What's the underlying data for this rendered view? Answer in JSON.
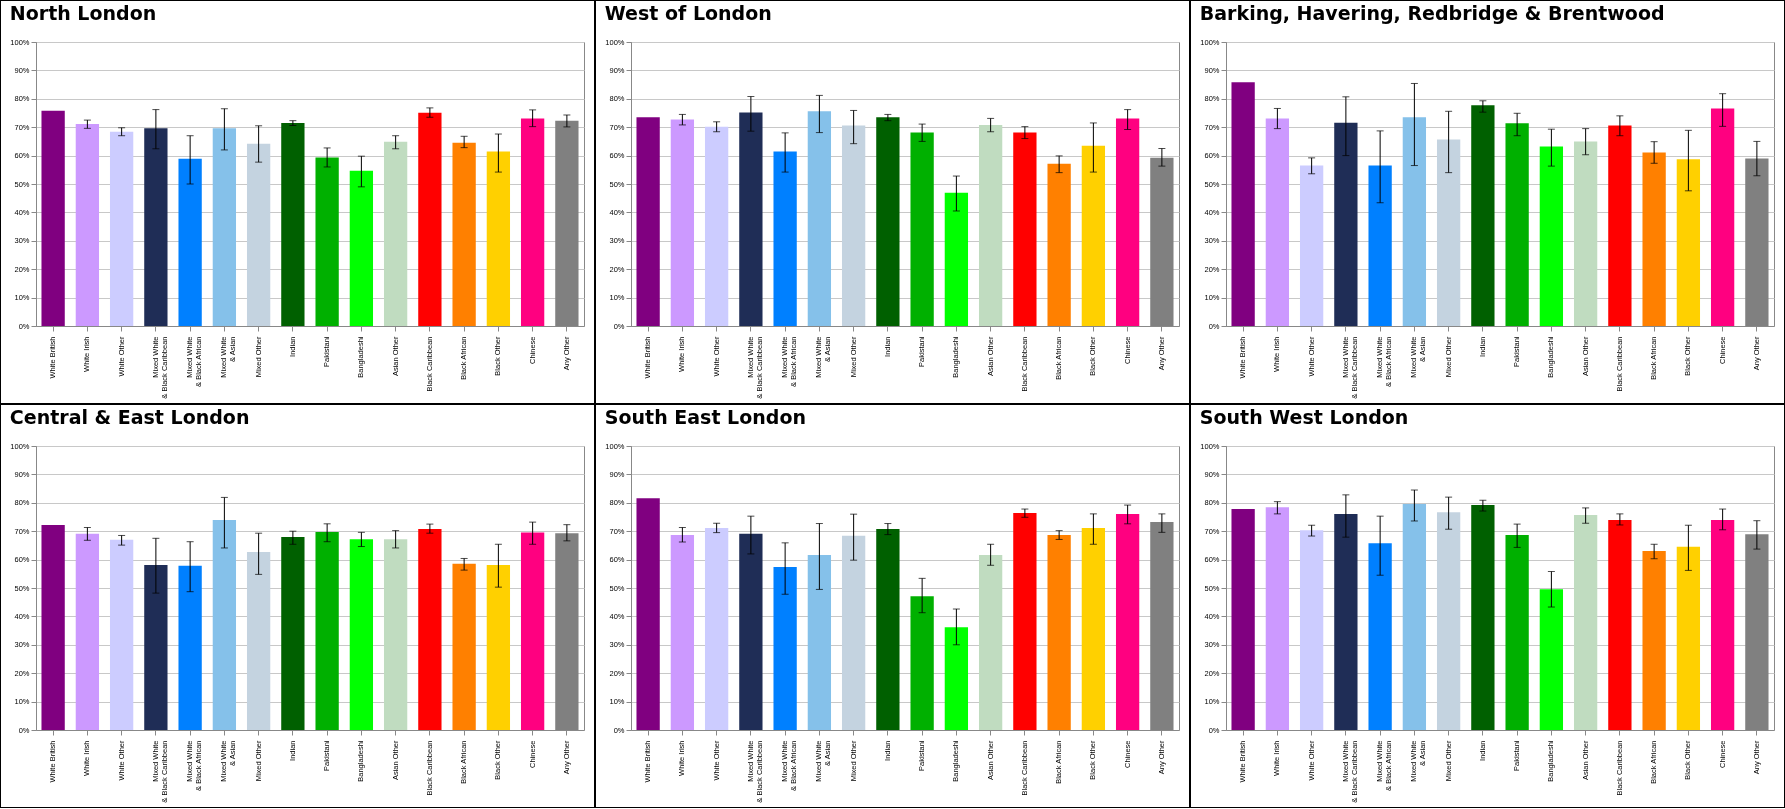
{
  "chart_data": [
    {
      "type": "bar",
      "title": "North London",
      "categories": [
        "White British",
        "White Irish",
        "White Other",
        "Mixed White\n& Black Caribbean",
        "Mixed White\n& Black African",
        "Mixed White\n& Asian",
        "Mixed Other",
        "Indian",
        "Pakistani",
        "Bangladeshi",
        "Asian Other",
        "Black Caribbean",
        "Black African",
        "Black Other",
        "Chinese",
        "Any Other"
      ],
      "values": [
        75.8,
        71.1,
        68.4,
        69.6,
        58.9,
        69.6,
        64.2,
        71.5,
        59.3,
        54.7,
        64.9,
        75.1,
        64.5,
        61.4,
        73.1,
        72.3
      ],
      "errors": [
        null,
        [
          69.6,
          72.5
        ],
        [
          67.0,
          69.8
        ],
        [
          62.4,
          76.2
        ],
        [
          50.0,
          67.0
        ],
        [
          62.0,
          76.5
        ],
        [
          57.7,
          70.5
        ],
        [
          70.6,
          72.3
        ],
        [
          56.0,
          62.7
        ],
        [
          49.0,
          59.8
        ],
        [
          62.4,
          67.0
        ],
        [
          73.5,
          76.8
        ],
        [
          62.8,
          66.8
        ],
        [
          54.2,
          67.6
        ],
        [
          70.2,
          76.1
        ],
        [
          70.1,
          74.3
        ]
      ],
      "colors": [
        "#800080",
        "#cc99ff",
        "#ccccff",
        "#1f2d56",
        "#0080ff",
        "#85c1ea",
        "#c4d3e0",
        "#006000",
        "#00b000",
        "#00ff00",
        "#c0dcc0",
        "#ff0000",
        "#ff8000",
        "#ffd000",
        "#ff0080",
        "#808080"
      ],
      "ylim": [
        0,
        100
      ],
      "yticks": [
        {
          "value": 0,
          "label": "0%"
        },
        {
          "value": 10,
          "label": "10%"
        },
        {
          "value": 20,
          "label": "20%"
        },
        {
          "value": 30,
          "label": "30%"
        },
        {
          "value": 40,
          "label": "40%"
        },
        {
          "value": 50,
          "label": "50%"
        },
        {
          "value": 60,
          "label": "60%"
        },
        {
          "value": 70,
          "label": "70%"
        },
        {
          "value": 80,
          "label": "80%"
        },
        {
          "value": 90,
          "label": "90%"
        },
        {
          "value": 100,
          "label": "100%"
        }
      ],
      "grid": "y"
    },
    {
      "type": "bar",
      "title": "West of London",
      "categories": [
        "White British",
        "White Irish",
        "White Other",
        "Mixed White\n& Black Caribbean",
        "Mixed White\n& Black African",
        "Mixed White\n& Asian",
        "Mixed Other",
        "Indian",
        "Pakistani",
        "Bangladeshi",
        "Asian Other",
        "Black Caribbean",
        "Black African",
        "Black Other",
        "Chinese",
        "Any Other"
      ],
      "values": [
        73.5,
        72.7,
        70.2,
        75.2,
        61.4,
        75.6,
        70.6,
        73.5,
        68.1,
        46.9,
        70.8,
        68.1,
        57.1,
        63.5,
        73.1,
        59.2
      ],
      "errors": [
        null,
        [
          70.8,
          74.5
        ],
        [
          68.4,
          71.9
        ],
        [
          68.6,
          80.8
        ],
        [
          54.2,
          68.0
        ],
        [
          68.1,
          81.2
        ],
        [
          64.2,
          75.9
        ],
        [
          72.3,
          74.5
        ],
        [
          65.0,
          71.1
        ],
        [
          40.5,
          52.8
        ],
        [
          68.4,
          73.1
        ],
        [
          66.0,
          70.2
        ],
        [
          54.0,
          59.9
        ],
        [
          54.2,
          71.5
        ],
        [
          69.2,
          76.2
        ],
        [
          56.3,
          62.5
        ]
      ],
      "colors": [
        "#800080",
        "#cc99ff",
        "#ccccff",
        "#1f2d56",
        "#0080ff",
        "#85c1ea",
        "#c4d3e0",
        "#006000",
        "#00b000",
        "#00ff00",
        "#c0dcc0",
        "#ff0000",
        "#ff8000",
        "#ffd000",
        "#ff0080",
        "#808080"
      ],
      "ylim": [
        0,
        100
      ],
      "yticks": [
        {
          "value": 0,
          "label": "0%"
        },
        {
          "value": 10,
          "label": "10%"
        },
        {
          "value": 20,
          "label": "20%"
        },
        {
          "value": 30,
          "label": "30%"
        },
        {
          "value": 40,
          "label": "40%"
        },
        {
          "value": 50,
          "label": "50%"
        },
        {
          "value": 60,
          "label": "60%"
        },
        {
          "value": 70,
          "label": "70%"
        },
        {
          "value": 80,
          "label": "80%"
        },
        {
          "value": 90,
          "label": "90%"
        },
        {
          "value": 100,
          "label": "100%"
        }
      ],
      "grid": "y"
    },
    {
      "type": "bar",
      "title": "Barking, Havering, Redbridge & Brentwood",
      "categories": [
        "White British",
        "White Irish",
        "White Other",
        "Mixed White\n& Black Caribbean",
        "Mixed White\n& Black African",
        "Mixed White\n& Asian",
        "Mixed Other",
        "Indian",
        "Pakistani",
        "Bangladeshi",
        "Asian Other",
        "Black Caribbean",
        "Black African",
        "Black Other",
        "Chinese",
        "Any Other"
      ],
      "values": [
        85.8,
        73.1,
        56.5,
        71.6,
        56.5,
        73.5,
        65.7,
        77.7,
        71.4,
        63.2,
        65.0,
        70.6,
        61.1,
        58.7,
        76.6,
        59.0
      ],
      "errors": [
        null,
        [
          69.5,
          76.6
        ],
        [
          53.6,
          59.2
        ],
        [
          60.0,
          80.7
        ],
        [
          43.4,
          68.7
        ],
        [
          56.5,
          85.4
        ],
        [
          54.0,
          75.6
        ],
        [
          75.3,
          79.3
        ],
        [
          67.0,
          74.9
        ],
        [
          56.3,
          69.3
        ],
        [
          60.3,
          69.5
        ],
        [
          67.0,
          74.0
        ],
        [
          57.3,
          64.9
        ],
        [
          47.6,
          68.9
        ],
        [
          70.3,
          81.8
        ],
        [
          52.9,
          65.0
        ]
      ],
      "colors": [
        "#800080",
        "#cc99ff",
        "#ccccff",
        "#1f2d56",
        "#0080ff",
        "#85c1ea",
        "#c4d3e0",
        "#006000",
        "#00b000",
        "#00ff00",
        "#c0dcc0",
        "#ff0000",
        "#ff8000",
        "#ffd000",
        "#ff0080",
        "#808080"
      ],
      "ylim": [
        0,
        100
      ],
      "yticks": [
        {
          "value": 0,
          "label": "0%"
        },
        {
          "value": 10,
          "label": "10%"
        },
        {
          "value": 20,
          "label": "20%"
        },
        {
          "value": 30,
          "label": "30%"
        },
        {
          "value": 40,
          "label": "40%"
        },
        {
          "value": 50,
          "label": "50%"
        },
        {
          "value": 60,
          "label": "60%"
        },
        {
          "value": 70,
          "label": "70%"
        },
        {
          "value": 80,
          "label": "80%"
        },
        {
          "value": 90,
          "label": "90%"
        },
        {
          "value": 100,
          "label": "100%"
        }
      ],
      "grid": "y"
    },
    {
      "type": "bar",
      "title": "Central & East London",
      "categories": [
        "White British",
        "White Irish",
        "White Other",
        "Mixed White\n& Black Caribbean",
        "Mixed White\n& Black African",
        "Mixed White\n& Asian",
        "Mixed Other",
        "Indian",
        "Pakistani",
        "Bangladeshi",
        "Asian Other",
        "Black Caribbean",
        "Black African",
        "Black Other",
        "Chinese",
        "Any Other"
      ],
      "values": [
        72.2,
        69.1,
        67.0,
        58.1,
        57.8,
        73.9,
        62.7,
        68.0,
        69.7,
        67.2,
        67.2,
        70.8,
        58.5,
        58.1,
        69.5,
        69.3
      ],
      "errors": [
        null,
        [
          66.8,
          71.3
        ],
        [
          65.1,
          68.5
        ],
        [
          48.2,
          67.5
        ],
        [
          48.7,
          66.3
        ],
        [
          64.1,
          81.9
        ],
        [
          54.8,
          69.3
        ],
        [
          65.4,
          70.0
        ],
        [
          66.3,
          72.6
        ],
        [
          64.6,
          69.6
        ],
        [
          64.1,
          70.2
        ],
        [
          69.3,
          72.5
        ],
        [
          56.3,
          60.4
        ],
        [
          50.3,
          65.4
        ],
        [
          65.4,
          73.2
        ],
        [
          66.6,
          72.3
        ]
      ],
      "colors": [
        "#800080",
        "#cc99ff",
        "#ccccff",
        "#1f2d56",
        "#0080ff",
        "#85c1ea",
        "#c4d3e0",
        "#006000",
        "#00b000",
        "#00ff00",
        "#c0dcc0",
        "#ff0000",
        "#ff8000",
        "#ffd000",
        "#ff0080",
        "#808080"
      ],
      "ylim": [
        0,
        100
      ],
      "yticks": [
        {
          "value": 0,
          "label": "0%"
        },
        {
          "value": 10,
          "label": "10%"
        },
        {
          "value": 20,
          "label": "20%"
        },
        {
          "value": 30,
          "label": "30%"
        },
        {
          "value": 40,
          "label": "40%"
        },
        {
          "value": 50,
          "label": "50%"
        },
        {
          "value": 60,
          "label": "60%"
        },
        {
          "value": 70,
          "label": "70%"
        },
        {
          "value": 80,
          "label": "80%"
        },
        {
          "value": 90,
          "label": "90%"
        },
        {
          "value": 100,
          "label": "100%"
        }
      ],
      "grid": "y"
    },
    {
      "type": "bar",
      "title": "South East London",
      "categories": [
        "White British",
        "White Irish",
        "White Other",
        "Mixed White\n& Black Caribbean",
        "Mixed White\n& Black African",
        "Mixed White\n& Asian",
        "Mixed Other",
        "Indian",
        "Pakistani",
        "Bangladeshi",
        "Asian Other",
        "Black Caribbean",
        "Black African",
        "Black Other",
        "Chinese",
        "Any Other"
      ],
      "values": [
        81.6,
        68.7,
        71.1,
        69.1,
        57.4,
        61.6,
        68.4,
        70.8,
        47.1,
        36.2,
        61.6,
        76.4,
        68.7,
        71.1,
        76.1,
        73.2
      ],
      "errors": [
        null,
        [
          66.2,
          71.3
        ],
        [
          69.5,
          72.8
        ],
        [
          62.0,
          75.3
        ],
        [
          47.8,
          65.9
        ],
        [
          49.5,
          72.7
        ],
        [
          59.8,
          76.0
        ],
        [
          68.8,
          72.7
        ],
        [
          41.3,
          53.4
        ],
        [
          30.0,
          42.6
        ],
        [
          58.0,
          65.4
        ],
        [
          74.9,
          77.8
        ],
        [
          67.1,
          70.2
        ],
        [
          65.4,
          76.1
        ],
        [
          72.6,
          79.2
        ],
        [
          69.6,
          76.1
        ]
      ],
      "colors": [
        "#800080",
        "#cc99ff",
        "#ccccff",
        "#1f2d56",
        "#0080ff",
        "#85c1ea",
        "#c4d3e0",
        "#006000",
        "#00b000",
        "#00ff00",
        "#c0dcc0",
        "#ff0000",
        "#ff8000",
        "#ffd000",
        "#ff0080",
        "#808080"
      ],
      "ylim": [
        0,
        100
      ],
      "yticks": [
        {
          "value": 0,
          "label": "0%"
        },
        {
          "value": 10,
          "label": "10%"
        },
        {
          "value": 20,
          "label": "20%"
        },
        {
          "value": 30,
          "label": "30%"
        },
        {
          "value": 40,
          "label": "40%"
        },
        {
          "value": 50,
          "label": "50%"
        },
        {
          "value": 60,
          "label": "60%"
        },
        {
          "value": 70,
          "label": "70%"
        },
        {
          "value": 80,
          "label": "80%"
        },
        {
          "value": 90,
          "label": "90%"
        },
        {
          "value": 100,
          "label": "100%"
        }
      ],
      "grid": "y"
    },
    {
      "type": "bar",
      "title": "South West London",
      "categories": [
        "White British",
        "White Irish",
        "White Other",
        "Mixed White\n& Black Caribbean",
        "Mixed White\n& Black African",
        "Mixed White\n& Asian",
        "Mixed Other",
        "Indian",
        "Pakistani",
        "Bangladeshi",
        "Asian Other",
        "Black Caribbean",
        "Black African",
        "Black Other",
        "Chinese",
        "Any Other"
      ],
      "values": [
        77.8,
        78.4,
        70.3,
        76.1,
        65.8,
        79.6,
        76.7,
        79.2,
        68.7,
        49.6,
        75.7,
        73.9,
        63.0,
        64.5,
        73.9,
        68.9
      ],
      "errors": [
        null,
        [
          76.1,
          80.4
        ],
        [
          68.3,
          72.1
        ],
        [
          67.9,
          82.8
        ],
        [
          54.5,
          75.3
        ],
        [
          73.6,
          84.5
        ],
        [
          70.7,
          82.0
        ],
        [
          77.1,
          80.9
        ],
        [
          64.3,
          72.5
        ],
        [
          43.3,
          55.8
        ],
        [
          72.8,
          78.2
        ],
        [
          72.2,
          76.1
        ],
        [
          60.3,
          65.4
        ],
        [
          56.2,
          72.1
        ],
        [
          70.5,
          77.8
        ],
        [
          63.7,
          73.7
        ]
      ],
      "colors": [
        "#800080",
        "#cc99ff",
        "#ccccff",
        "#1f2d56",
        "#0080ff",
        "#85c1ea",
        "#c4d3e0",
        "#006000",
        "#00b000",
        "#00ff00",
        "#c0dcc0",
        "#ff0000",
        "#ff8000",
        "#ffd000",
        "#ff0080",
        "#808080"
      ],
      "ylim": [
        0,
        100
      ],
      "yticks": [
        {
          "value": 0,
          "label": "0%"
        },
        {
          "value": 10,
          "label": "10%"
        },
        {
          "value": 20,
          "label": "20%"
        },
        {
          "value": 30,
          "label": "30%"
        },
        {
          "value": 40,
          "label": "40%"
        },
        {
          "value": 50,
          "label": "50%"
        },
        {
          "value": 60,
          "label": "60%"
        },
        {
          "value": 70,
          "label": "70%"
        },
        {
          "value": 80,
          "label": "80%"
        },
        {
          "value": 90,
          "label": "90%"
        },
        {
          "value": 100,
          "label": "100%"
        }
      ],
      "grid": "y"
    }
  ]
}
